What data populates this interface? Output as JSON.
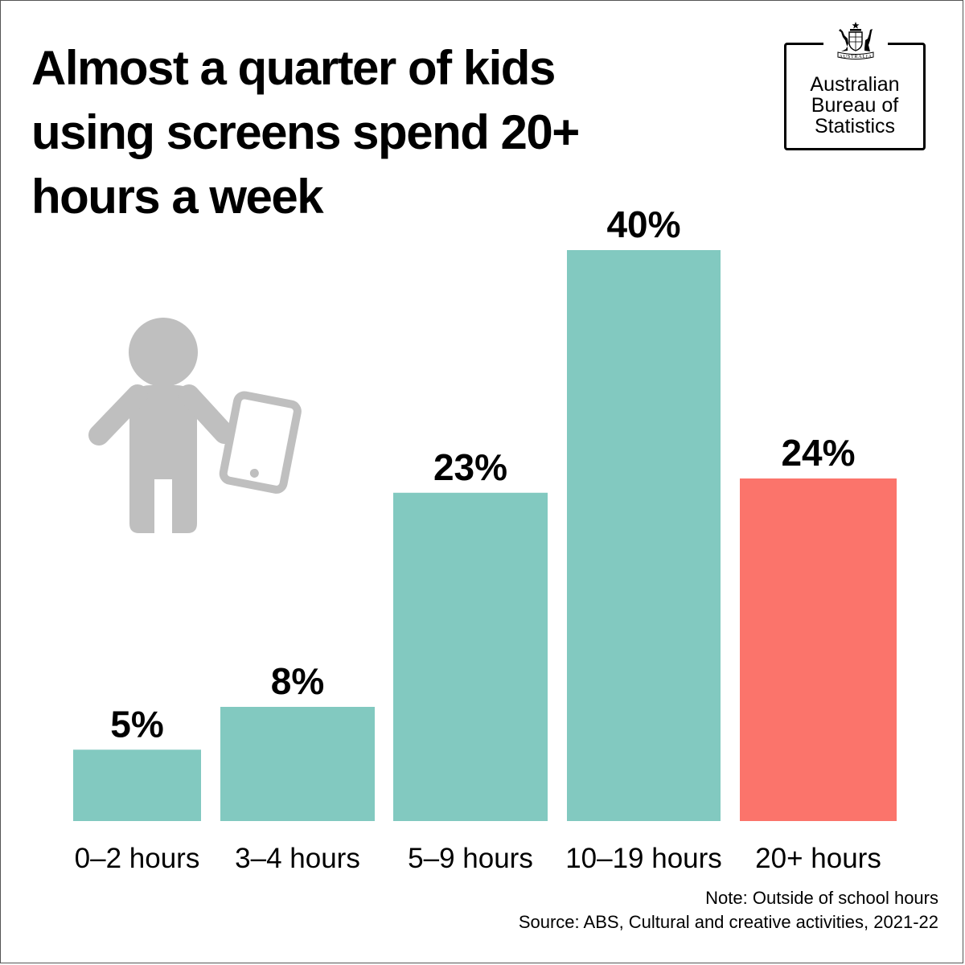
{
  "title": "Almost a quarter of kids using screens spend 20+ hours a week",
  "logo": {
    "crest_text": "AUSTRALIA",
    "lines": [
      "Australian",
      "Bureau of",
      "Statistics"
    ]
  },
  "illustration": {
    "icon": "child-with-tablet-icon",
    "color": "#bfbfbf"
  },
  "chart_data": {
    "type": "bar",
    "title": "Almost a quarter of kids using screens spend 20+ hours a week",
    "xlabel": "",
    "ylabel": "",
    "categories": [
      "0–2 hours",
      "3–4 hours",
      "5–9 hours",
      "10–19 hours",
      "20+ hours"
    ],
    "values": [
      5,
      8,
      23,
      40,
      24
    ],
    "value_labels": [
      "5%",
      "8%",
      "23%",
      "40%",
      "24%"
    ],
    "unit": "%",
    "colors": [
      "#82c9c0",
      "#82c9c0",
      "#82c9c0",
      "#82c9c0",
      "#fb746b"
    ],
    "highlight_category": "20+ hours",
    "ylim": [
      0,
      40
    ],
    "grid": false,
    "legend": "none"
  },
  "note": "Note: Outside of school hours",
  "source": "Source: ABS, Cultural and creative activities, 2021-22"
}
